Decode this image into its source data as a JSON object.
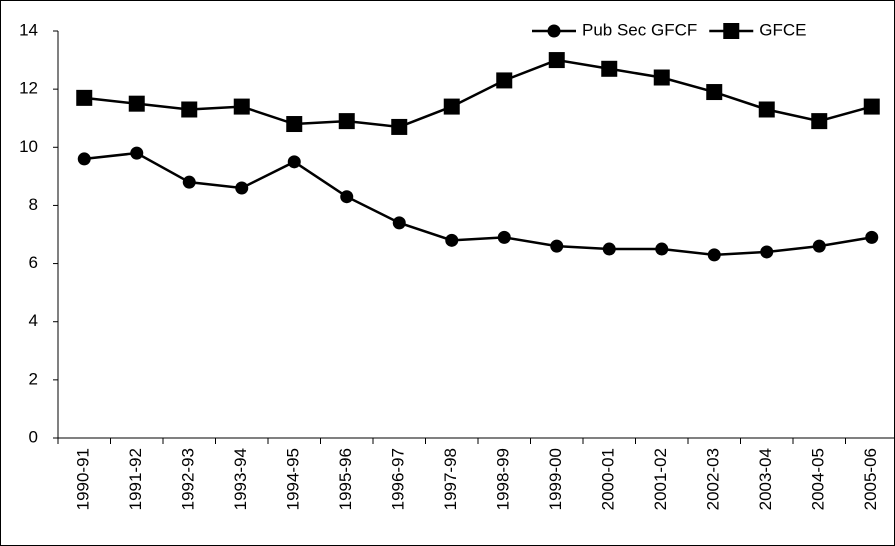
{
  "chart_data": {
    "type": "line",
    "categories": [
      "1990-91",
      "1991-92",
      "1992-93",
      "1993-94",
      "1994-95",
      "1995-96",
      "1996-97",
      "1997-98",
      "1998-99",
      "1999-00",
      "2000-01",
      "2001-02",
      "2002-03",
      "2003-04",
      "2004-05",
      "2005-06"
    ],
    "series": [
      {
        "name": "Pub Sec GFCF",
        "color": "#000000",
        "marker": "circle",
        "values": [
          9.6,
          9.8,
          8.8,
          8.6,
          9.5,
          8.3,
          7.4,
          6.8,
          6.9,
          6.6,
          6.5,
          6.5,
          6.3,
          6.4,
          6.6,
          6.9
        ]
      },
      {
        "name": "GFCE",
        "color": "#000000",
        "marker": "square",
        "values": [
          11.7,
          11.5,
          11.3,
          11.4,
          10.8,
          10.9,
          10.7,
          11.4,
          12.3,
          13.0,
          12.7,
          12.4,
          11.9,
          11.3,
          10.9,
          11.4
        ]
      }
    ],
    "ylim": [
      0,
      14
    ],
    "yticks": [
      0,
      2,
      4,
      6,
      8,
      10,
      12,
      14
    ],
    "legend": "top-right"
  }
}
